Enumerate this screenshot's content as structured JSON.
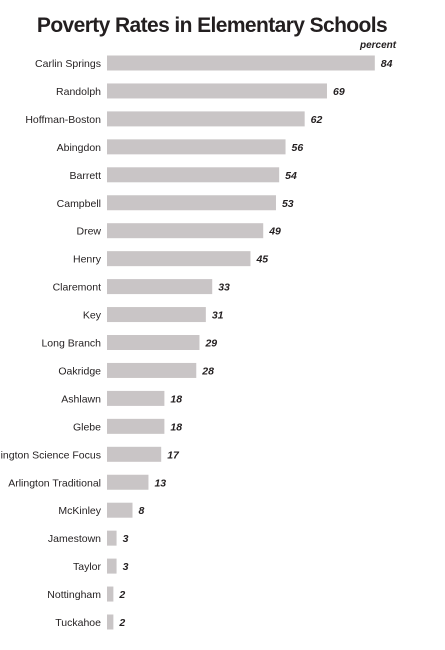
{
  "chart_data": {
    "type": "bar",
    "orientation": "horizontal",
    "title": "Poverty Rates in Elementary Schools",
    "unit_label": "percent",
    "categories": [
      "Carlin Springs",
      "Randolph",
      "Hoffman-Boston",
      "Abingdon",
      "Barrett",
      "Campbell",
      "Drew",
      "Henry",
      "Claremont",
      "Key",
      "Long Branch",
      "Oakridge",
      "Ashlawn",
      "Glebe",
      "Arlington Science Focus",
      "Arlington  Traditional",
      "McKinley",
      "Jamestown",
      "Taylor",
      "Nottingham",
      "Tuckahoe"
    ],
    "values": [
      84,
      69,
      62,
      56,
      54,
      53,
      49,
      45,
      33,
      31,
      29,
      28,
      18,
      18,
      17,
      13,
      8,
      3,
      3,
      2,
      2
    ],
    "xlim": [
      0,
      85
    ],
    "bar_color": "#c9c5c6",
    "grid": false,
    "legend": "none"
  }
}
